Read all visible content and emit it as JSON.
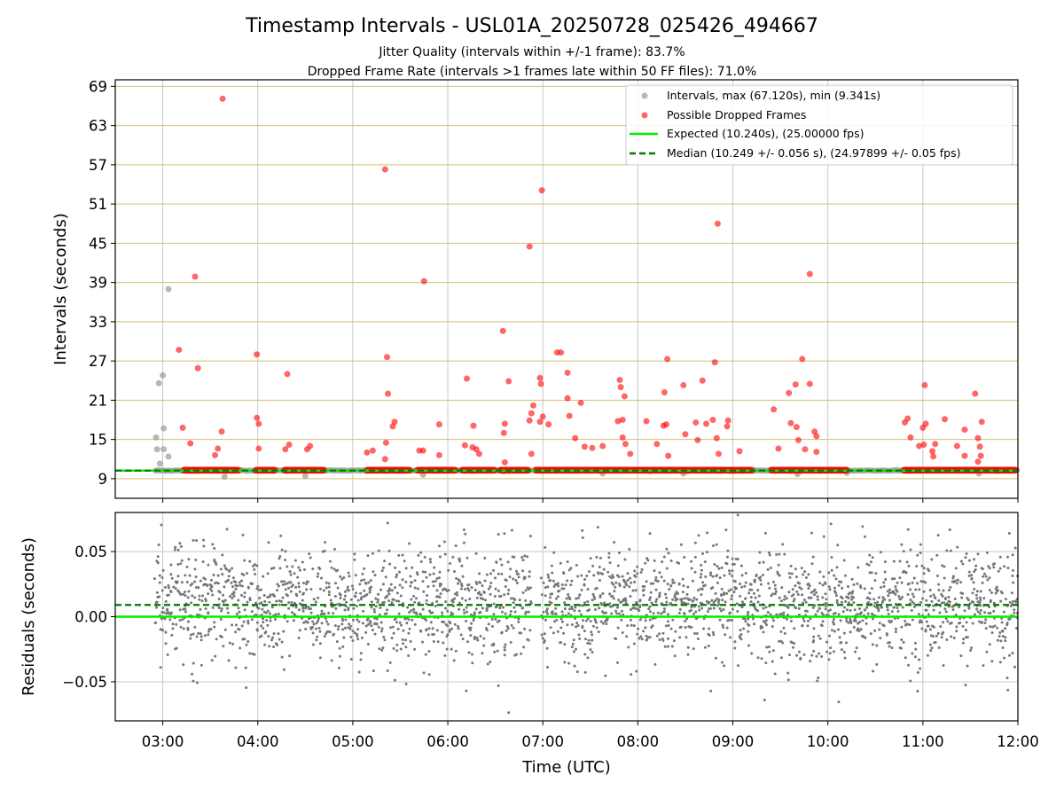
{
  "chart_data": [
    {
      "type": "scatter",
      "title": "Timestamp Intervals - USL01A_20250728_025426_494667",
      "subtitle_lines": [
        "Jitter Quality (intervals within +/-1 frame): 83.7%",
        "Dropped Frame Rate (intervals >1 frames late within 50 FF files): 71.0%"
      ],
      "xlabel": "",
      "ylabel": "Intervals (seconds)",
      "x_range_hours": [
        2.5,
        12.0
      ],
      "ylim": [
        6.0,
        70.0
      ],
      "y_ticks": [
        9,
        15,
        21,
        27,
        33,
        39,
        45,
        51,
        57,
        63,
        69
      ],
      "y_tick_labels": [
        "9",
        "15",
        "21",
        "27",
        "33",
        "39",
        "45",
        "51",
        "57",
        "63",
        "69"
      ],
      "grid": true,
      "legend_position": "top-right",
      "legend": [
        "Intervals, max (67.120s), min (9.341s)",
        "Possible Dropped Frames",
        "Expected (10.240s), (25.00000 fps)",
        "Median (10.249 +/- 0.056 s), (24.97899 +/- 0.05 fps)"
      ],
      "expected_interval": 10.24,
      "median_interval": 10.249,
      "x_start_hours": 2.92,
      "x_end_hours": 12.0,
      "gap_hours": [
        [
          6.88,
          6.98
        ]
      ],
      "intervals_outliers": [
        {
          "x": 2.93,
          "y": 15.3
        },
        {
          "x": 2.94,
          "y": 13.5
        },
        {
          "x": 2.96,
          "y": 23.6
        },
        {
          "x": 2.97,
          "y": 11.3
        },
        {
          "x": 3.0,
          "y": 24.8
        },
        {
          "x": 3.01,
          "y": 16.7
        },
        {
          "x": 3.01,
          "y": 13.5
        },
        {
          "x": 3.06,
          "y": 38.0
        },
        {
          "x": 3.06,
          "y": 12.4
        },
        {
          "x": 3.65,
          "y": 9.3
        },
        {
          "x": 4.5,
          "y": 9.4
        },
        {
          "x": 5.74,
          "y": 9.6
        },
        {
          "x": 7.63,
          "y": 9.8
        },
        {
          "x": 8.48,
          "y": 9.8
        },
        {
          "x": 9.68,
          "y": 9.7
        },
        {
          "x": 10.2,
          "y": 9.9
        },
        {
          "x": 11.59,
          "y": 9.8
        }
      ],
      "dropped_frames": [
        {
          "x": 3.17,
          "y": 28.7
        },
        {
          "x": 3.21,
          "y": 16.8
        },
        {
          "x": 3.29,
          "y": 14.4
        },
        {
          "x": 3.34,
          "y": 39.9
        },
        {
          "x": 3.37,
          "y": 25.9
        },
        {
          "x": 3.55,
          "y": 12.6
        },
        {
          "x": 3.63,
          "y": 67.1
        },
        {
          "x": 3.62,
          "y": 16.2
        },
        {
          "x": 3.58,
          "y": 13.6
        },
        {
          "x": 3.99,
          "y": 28.0
        },
        {
          "x": 3.99,
          "y": 18.3
        },
        {
          "x": 4.01,
          "y": 17.4
        },
        {
          "x": 4.01,
          "y": 13.6
        },
        {
          "x": 4.31,
          "y": 25.0
        },
        {
          "x": 4.29,
          "y": 13.5
        },
        {
          "x": 4.33,
          "y": 14.2
        },
        {
          "x": 4.52,
          "y": 13.5
        },
        {
          "x": 4.55,
          "y": 14.0
        },
        {
          "x": 5.15,
          "y": 13.0
        },
        {
          "x": 5.21,
          "y": 13.3
        },
        {
          "x": 5.34,
          "y": 56.3
        },
        {
          "x": 5.36,
          "y": 27.6
        },
        {
          "x": 5.37,
          "y": 22.0
        },
        {
          "x": 5.35,
          "y": 14.5
        },
        {
          "x": 5.34,
          "y": 12.0
        },
        {
          "x": 5.42,
          "y": 17.0
        },
        {
          "x": 5.44,
          "y": 17.7
        },
        {
          "x": 5.7,
          "y": 13.3
        },
        {
          "x": 5.74,
          "y": 13.3
        },
        {
          "x": 5.75,
          "y": 39.2
        },
        {
          "x": 5.91,
          "y": 17.3
        },
        {
          "x": 5.91,
          "y": 12.6
        },
        {
          "x": 6.18,
          "y": 14.1
        },
        {
          "x": 6.2,
          "y": 24.3
        },
        {
          "x": 6.26,
          "y": 13.8
        },
        {
          "x": 6.27,
          "y": 17.1
        },
        {
          "x": 6.3,
          "y": 13.5
        },
        {
          "x": 6.33,
          "y": 12.8
        },
        {
          "x": 6.58,
          "y": 31.6
        },
        {
          "x": 6.6,
          "y": 17.4
        },
        {
          "x": 6.59,
          "y": 16.0
        },
        {
          "x": 6.6,
          "y": 11.5
        },
        {
          "x": 6.64,
          "y": 23.9
        },
        {
          "x": 6.86,
          "y": 44.5
        },
        {
          "x": 6.88,
          "y": 19.0
        },
        {
          "x": 6.9,
          "y": 20.2
        },
        {
          "x": 6.86,
          "y": 17.9
        },
        {
          "x": 6.88,
          "y": 12.8
        },
        {
          "x": 6.97,
          "y": 24.4
        },
        {
          "x": 6.99,
          "y": 53.1
        },
        {
          "x": 6.98,
          "y": 23.5
        },
        {
          "x": 7.0,
          "y": 18.5
        },
        {
          "x": 6.97,
          "y": 17.7
        },
        {
          "x": 7.06,
          "y": 17.3
        },
        {
          "x": 7.15,
          "y": 28.3
        },
        {
          "x": 7.19,
          "y": 28.3
        },
        {
          "x": 7.26,
          "y": 25.2
        },
        {
          "x": 7.26,
          "y": 21.3
        },
        {
          "x": 7.28,
          "y": 18.6
        },
        {
          "x": 7.34,
          "y": 15.2
        },
        {
          "x": 7.4,
          "y": 20.6
        },
        {
          "x": 7.44,
          "y": 13.9
        },
        {
          "x": 7.52,
          "y": 13.7
        },
        {
          "x": 7.63,
          "y": 14.0
        },
        {
          "x": 7.79,
          "y": 17.8
        },
        {
          "x": 7.81,
          "y": 24.1
        },
        {
          "x": 7.82,
          "y": 23.0
        },
        {
          "x": 7.84,
          "y": 18.0
        },
        {
          "x": 7.86,
          "y": 21.6
        },
        {
          "x": 7.84,
          "y": 15.3
        },
        {
          "x": 7.87,
          "y": 14.3
        },
        {
          "x": 7.92,
          "y": 12.8
        },
        {
          "x": 8.09,
          "y": 17.8
        },
        {
          "x": 8.2,
          "y": 14.3
        },
        {
          "x": 8.27,
          "y": 17.1
        },
        {
          "x": 8.28,
          "y": 22.2
        },
        {
          "x": 8.31,
          "y": 27.3
        },
        {
          "x": 8.3,
          "y": 17.3
        },
        {
          "x": 8.32,
          "y": 12.5
        },
        {
          "x": 8.48,
          "y": 23.3
        },
        {
          "x": 8.5,
          "y": 15.8
        },
        {
          "x": 8.61,
          "y": 17.6
        },
        {
          "x": 8.63,
          "y": 14.9
        },
        {
          "x": 8.68,
          "y": 24.0
        },
        {
          "x": 8.72,
          "y": 17.4
        },
        {
          "x": 8.79,
          "y": 18.0
        },
        {
          "x": 8.81,
          "y": 26.8
        },
        {
          "x": 8.84,
          "y": 48.0
        },
        {
          "x": 8.83,
          "y": 15.2
        },
        {
          "x": 8.85,
          "y": 12.8
        },
        {
          "x": 8.95,
          "y": 17.9
        },
        {
          "x": 8.94,
          "y": 17.0
        },
        {
          "x": 9.07,
          "y": 13.2
        },
        {
          "x": 9.43,
          "y": 19.6
        },
        {
          "x": 9.48,
          "y": 13.6
        },
        {
          "x": 9.59,
          "y": 22.1
        },
        {
          "x": 9.61,
          "y": 17.5
        },
        {
          "x": 9.66,
          "y": 23.4
        },
        {
          "x": 9.67,
          "y": 16.9
        },
        {
          "x": 9.69,
          "y": 14.9
        },
        {
          "x": 9.73,
          "y": 27.3
        },
        {
          "x": 9.76,
          "y": 13.5
        },
        {
          "x": 9.81,
          "y": 40.3
        },
        {
          "x": 9.81,
          "y": 23.5
        },
        {
          "x": 9.86,
          "y": 16.2
        },
        {
          "x": 9.88,
          "y": 15.5
        },
        {
          "x": 9.88,
          "y": 13.1
        },
        {
          "x": 10.81,
          "y": 17.6
        },
        {
          "x": 10.84,
          "y": 18.2
        },
        {
          "x": 10.87,
          "y": 15.3
        },
        {
          "x": 10.96,
          "y": 14.0
        },
        {
          "x": 11.0,
          "y": 16.8
        },
        {
          "x": 11.02,
          "y": 23.3
        },
        {
          "x": 11.03,
          "y": 17.4
        },
        {
          "x": 11.01,
          "y": 14.2
        },
        {
          "x": 11.1,
          "y": 13.2
        },
        {
          "x": 11.11,
          "y": 12.4
        },
        {
          "x": 11.13,
          "y": 14.3
        },
        {
          "x": 11.23,
          "y": 18.1
        },
        {
          "x": 11.36,
          "y": 14.0
        },
        {
          "x": 11.44,
          "y": 16.5
        },
        {
          "x": 11.44,
          "y": 12.5
        },
        {
          "x": 11.55,
          "y": 22.0
        },
        {
          "x": 11.58,
          "y": 15.2
        },
        {
          "x": 11.62,
          "y": 17.7
        },
        {
          "x": 11.6,
          "y": 13.9
        },
        {
          "x": 11.58,
          "y": 11.6
        },
        {
          "x": 11.61,
          "y": 12.5
        }
      ],
      "colors": {
        "intervals": "#a0a0a0",
        "dropped": "#ff0000",
        "expected": "#00ee00",
        "median": "#007a00",
        "tick_grid": "#c0c0c0",
        "y_grid": "#d6bf6f"
      }
    },
    {
      "type": "scatter",
      "xlabel": "Time (UTC)",
      "ylabel": "Residuals (seconds)",
      "x_range_hours": [
        2.5,
        12.0
      ],
      "ylim": [
        -0.08,
        0.08
      ],
      "y_ticks": [
        -0.05,
        0.0,
        0.05
      ],
      "y_tick_labels": [
        "−0.05",
        "0.00",
        "0.05"
      ],
      "x_ticks_hours": [
        3,
        4,
        5,
        6,
        7,
        8,
        9,
        10,
        11,
        12
      ],
      "x_tick_labels": [
        "03:00",
        "04:00",
        "05:00",
        "06:00",
        "07:00",
        "08:00",
        "09:00",
        "10:00",
        "11:00",
        "12:00"
      ],
      "grid": true,
      "expected_residual": 0.0,
      "median_residual": 0.009,
      "residual_spread_sd": 0.022,
      "residual_point_count": 2600,
      "colors": {
        "points": "#777777",
        "expected": "#00ee00",
        "median": "#007a00"
      }
    }
  ]
}
